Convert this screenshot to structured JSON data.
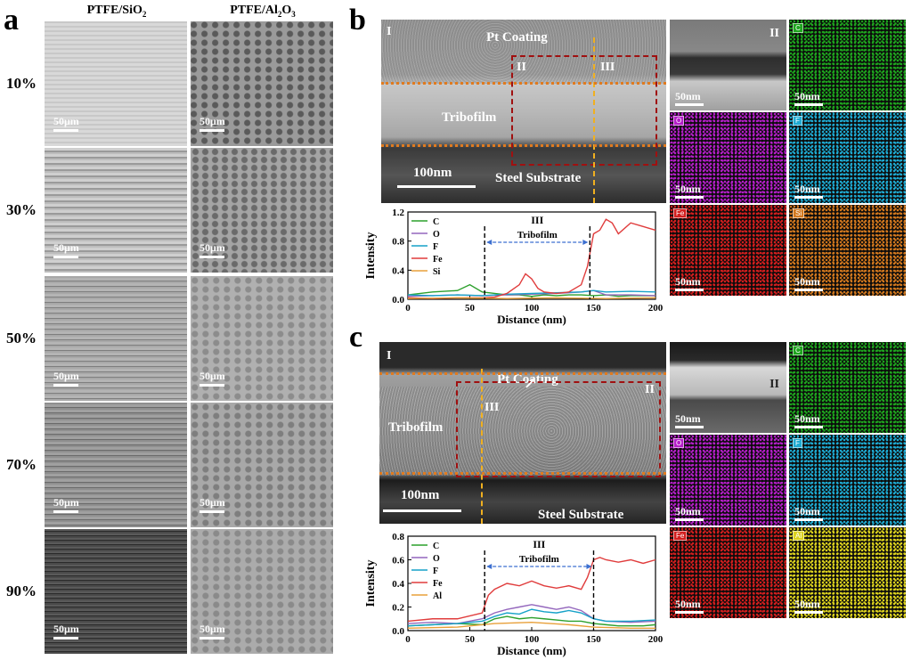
{
  "panel_a": {
    "letter": "a",
    "col_headers": {
      "left_html": "PTFE/SiO",
      "left_sub": "2",
      "right_html": "PTFE/Al",
      "right_sub1": "2",
      "right_mid": "O",
      "right_sub2": "3"
    },
    "rows": [
      "10%",
      "30%",
      "50%",
      "70%",
      "90%"
    ],
    "scale": "50μm"
  },
  "panel_b": {
    "letter": "b",
    "tem": {
      "roman": "I",
      "coating": "Pt Coating",
      "film": "Tribofilm",
      "substrate": "Steel Substrate",
      "scale": "100nm",
      "box_left": "II",
      "box_right": "III"
    },
    "insert": {
      "roman": "II",
      "scale": "50nm"
    },
    "maps": [
      {
        "el": "C",
        "color": "#1ea51e",
        "scale": "50nm"
      },
      {
        "el": "O",
        "color": "#b41ec8",
        "scale": "50nm"
      },
      {
        "el": "F",
        "color": "#1eaad2",
        "scale": "50nm"
      },
      {
        "el": "Fe",
        "color": "#d21e1e",
        "scale": "50nm"
      },
      {
        "el": "Si",
        "color": "#d2781e",
        "scale": "50nm"
      }
    ]
  },
  "panel_c": {
    "letter": "c",
    "tem": {
      "roman_left": "I",
      "roman_right": "II",
      "coating": "Pt Coating",
      "film": "Tribofilm",
      "substrate": "Steel Substrate",
      "scale": "100nm",
      "line_label": "III"
    },
    "insert": {
      "roman": "II",
      "scale": "50nm"
    },
    "maps": [
      {
        "el": "C",
        "color": "#1ea51e",
        "scale": "50nm"
      },
      {
        "el": "O",
        "color": "#b41ec8",
        "scale": "50nm"
      },
      {
        "el": "F",
        "color": "#1eaad2",
        "scale": "50nm"
      },
      {
        "el": "Fe",
        "color": "#d21e1e",
        "scale": "50nm"
      },
      {
        "el": "Al",
        "color": "#dcd21e",
        "scale": "50nm"
      }
    ]
  },
  "chart_data": [
    {
      "type": "line",
      "panel": "b",
      "title": "III",
      "xlabel": "Distance (nm)",
      "ylabel": "Intensity",
      "xlim": [
        0,
        200
      ],
      "ylim": [
        0,
        1.2
      ],
      "xticks": [
        0,
        50,
        100,
        150,
        200
      ],
      "yticks": [
        0.0,
        0.4,
        0.8,
        1.2
      ],
      "annotation": "Tribofilm",
      "markers_x": [
        62,
        147
      ],
      "series": [
        {
          "name": "C",
          "color": "#2ca02c",
          "x": [
            0,
            20,
            40,
            50,
            60,
            70,
            80,
            90,
            100,
            110,
            120,
            130,
            140,
            150,
            160,
            170,
            180,
            190,
            200
          ],
          "y": [
            0.06,
            0.1,
            0.12,
            0.2,
            0.1,
            0.08,
            0.06,
            0.06,
            0.04,
            0.06,
            0.05,
            0.06,
            0.06,
            0.05,
            0.06,
            0.04,
            0.05,
            0.05,
            0.05
          ]
        },
        {
          "name": "O",
          "color": "#9467bd",
          "x": [
            0,
            20,
            40,
            60,
            80,
            100,
            120,
            140,
            150,
            160,
            180,
            200
          ],
          "y": [
            0.04,
            0.05,
            0.06,
            0.05,
            0.06,
            0.07,
            0.08,
            0.1,
            0.12,
            0.06,
            0.06,
            0.05
          ]
        },
        {
          "name": "F",
          "color": "#17a2c8",
          "x": [
            0,
            20,
            40,
            60,
            80,
            100,
            120,
            140,
            150,
            160,
            180,
            200
          ],
          "y": [
            0.06,
            0.05,
            0.06,
            0.05,
            0.07,
            0.08,
            0.09,
            0.1,
            0.12,
            0.1,
            0.11,
            0.1
          ]
        },
        {
          "name": "Fe",
          "color": "#e03c3c",
          "x": [
            0,
            20,
            40,
            60,
            70,
            80,
            90,
            95,
            100,
            105,
            110,
            120,
            130,
            140,
            145,
            150,
            155,
            160,
            165,
            170,
            180,
            190,
            200
          ],
          "y": [
            0.02,
            0.01,
            0.02,
            0.02,
            0.03,
            0.08,
            0.2,
            0.35,
            0.28,
            0.15,
            0.1,
            0.08,
            0.1,
            0.2,
            0.45,
            0.9,
            0.95,
            1.1,
            1.05,
            0.9,
            1.05,
            1.0,
            0.95
          ]
        },
        {
          "name": "Si",
          "color": "#e8a03a",
          "x": [
            0,
            40,
            80,
            120,
            160,
            200
          ],
          "y": [
            0.01,
            0.02,
            0.01,
            0.02,
            0.01,
            0.02
          ]
        }
      ]
    },
    {
      "type": "line",
      "panel": "c",
      "title": "III",
      "xlabel": "Distance (nm)",
      "ylabel": "Intensity",
      "xlim": [
        0,
        200
      ],
      "ylim": [
        0,
        0.8
      ],
      "xticks": [
        0,
        50,
        100,
        150,
        200
      ],
      "yticks": [
        0.0,
        0.2,
        0.4,
        0.6,
        0.8
      ],
      "annotation": "Tribofilm",
      "markers_x": [
        62,
        150
      ],
      "series": [
        {
          "name": "C",
          "color": "#2ca02c",
          "x": [
            0,
            20,
            40,
            60,
            70,
            80,
            90,
            100,
            110,
            120,
            130,
            140,
            150,
            160,
            170,
            180,
            190,
            200
          ],
          "y": [
            0.04,
            0.05,
            0.06,
            0.05,
            0.1,
            0.12,
            0.1,
            0.11,
            0.1,
            0.09,
            0.08,
            0.08,
            0.06,
            0.05,
            0.04,
            0.04,
            0.04,
            0.05
          ]
        },
        {
          "name": "O",
          "color": "#9467bd",
          "x": [
            0,
            20,
            40,
            60,
            70,
            80,
            90,
            100,
            110,
            120,
            130,
            140,
            150,
            160,
            180,
            200
          ],
          "y": [
            0.06,
            0.07,
            0.06,
            0.1,
            0.15,
            0.18,
            0.2,
            0.22,
            0.2,
            0.18,
            0.2,
            0.17,
            0.1,
            0.08,
            0.07,
            0.08
          ]
        },
        {
          "name": "F",
          "color": "#17a2c8",
          "x": [
            0,
            20,
            40,
            60,
            70,
            80,
            90,
            100,
            110,
            120,
            130,
            140,
            150,
            160,
            180,
            200
          ],
          "y": [
            0.04,
            0.05,
            0.06,
            0.08,
            0.12,
            0.15,
            0.14,
            0.18,
            0.16,
            0.15,
            0.17,
            0.15,
            0.1,
            0.08,
            0.08,
            0.09
          ]
        },
        {
          "name": "Fe",
          "color": "#e03c3c",
          "x": [
            0,
            20,
            40,
            60,
            65,
            70,
            80,
            90,
            100,
            110,
            120,
            130,
            140,
            145,
            150,
            155,
            160,
            170,
            180,
            190,
            200
          ],
          "y": [
            0.08,
            0.1,
            0.1,
            0.15,
            0.3,
            0.35,
            0.4,
            0.38,
            0.42,
            0.38,
            0.36,
            0.38,
            0.35,
            0.45,
            0.6,
            0.62,
            0.6,
            0.58,
            0.6,
            0.57,
            0.6
          ]
        },
        {
          "name": "Al",
          "color": "#e8a03a",
          "x": [
            0,
            40,
            70,
            100,
            130,
            150,
            180,
            200
          ],
          "y": [
            0.02,
            0.03,
            0.06,
            0.07,
            0.05,
            0.03,
            0.02,
            0.02
          ]
        }
      ]
    }
  ]
}
